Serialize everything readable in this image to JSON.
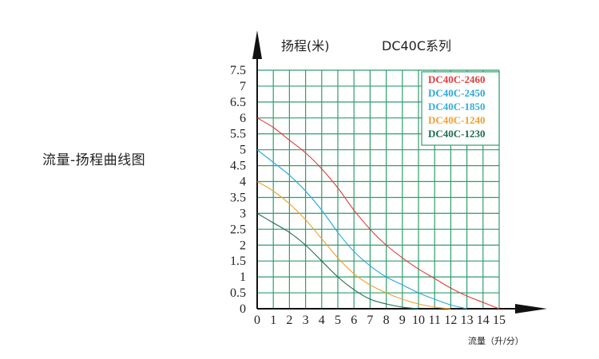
{
  "side_title": "流量-扬程曲线图",
  "chart_data": {
    "type": "line",
    "title": "DC40C系列",
    "ylabel": "扬程(米)",
    "xlabel": "流量（升/分）",
    "xlim": [
      0,
      15
    ],
    "ylim": [
      0,
      7.5
    ],
    "x_ticks": [
      "0",
      "1",
      "2",
      "3",
      "4",
      "5",
      "6",
      "7",
      "8",
      "9",
      "10",
      "11",
      "12",
      "13",
      "14",
      "15"
    ],
    "y_ticks": [
      "0",
      "0.5",
      "1",
      "1.5",
      "2",
      "2.5",
      "3",
      "3.5",
      "4",
      "4.5",
      "5",
      "5.5",
      "6",
      "6.5",
      "7",
      "7.5"
    ],
    "grid": true,
    "legend_position": "top-right",
    "series": [
      {
        "name": "DC40C-2460",
        "color": "#e03c3c",
        "x": [
          0,
          1,
          2,
          3,
          4,
          5,
          6,
          7,
          8,
          9,
          10,
          11,
          12,
          13,
          14,
          15
        ],
        "y": [
          6.0,
          5.7,
          5.3,
          4.9,
          4.4,
          3.8,
          3.1,
          2.5,
          2.0,
          1.6,
          1.25,
          0.95,
          0.65,
          0.4,
          0.2,
          0.0
        ]
      },
      {
        "name": "DC40C-2450",
        "color": "#2aa8d8",
        "x": [
          0,
          1,
          2,
          3,
          4,
          5,
          6,
          7,
          8,
          9,
          10,
          11,
          12,
          13
        ],
        "y": [
          5.0,
          4.6,
          4.2,
          3.7,
          3.1,
          2.4,
          1.8,
          1.35,
          1.0,
          0.75,
          0.5,
          0.3,
          0.12,
          0.0
        ]
      },
      {
        "name": "DC40C-1850",
        "color": "#33b0d8",
        "x": [
          0,
          1,
          2,
          3,
          4,
          5
        ],
        "y": [
          5.0,
          4.6,
          4.2,
          3.7,
          3.1,
          2.4
        ]
      },
      {
        "name": "DC40C-1240",
        "color": "#f0a030",
        "x": [
          0,
          1,
          2,
          3,
          4,
          5,
          6,
          7,
          8,
          9,
          10,
          11,
          12
        ],
        "y": [
          4.0,
          3.7,
          3.3,
          2.8,
          2.2,
          1.6,
          1.1,
          0.75,
          0.5,
          0.3,
          0.15,
          0.05,
          0.0
        ]
      },
      {
        "name": "DC40C-1230",
        "color": "#1f6b4f",
        "x": [
          0,
          1,
          2,
          3,
          4,
          5,
          6,
          7,
          8,
          9,
          10
        ],
        "y": [
          3.0,
          2.7,
          2.4,
          2.0,
          1.5,
          1.0,
          0.6,
          0.3,
          0.15,
          0.05,
          0.0
        ]
      }
    ]
  }
}
